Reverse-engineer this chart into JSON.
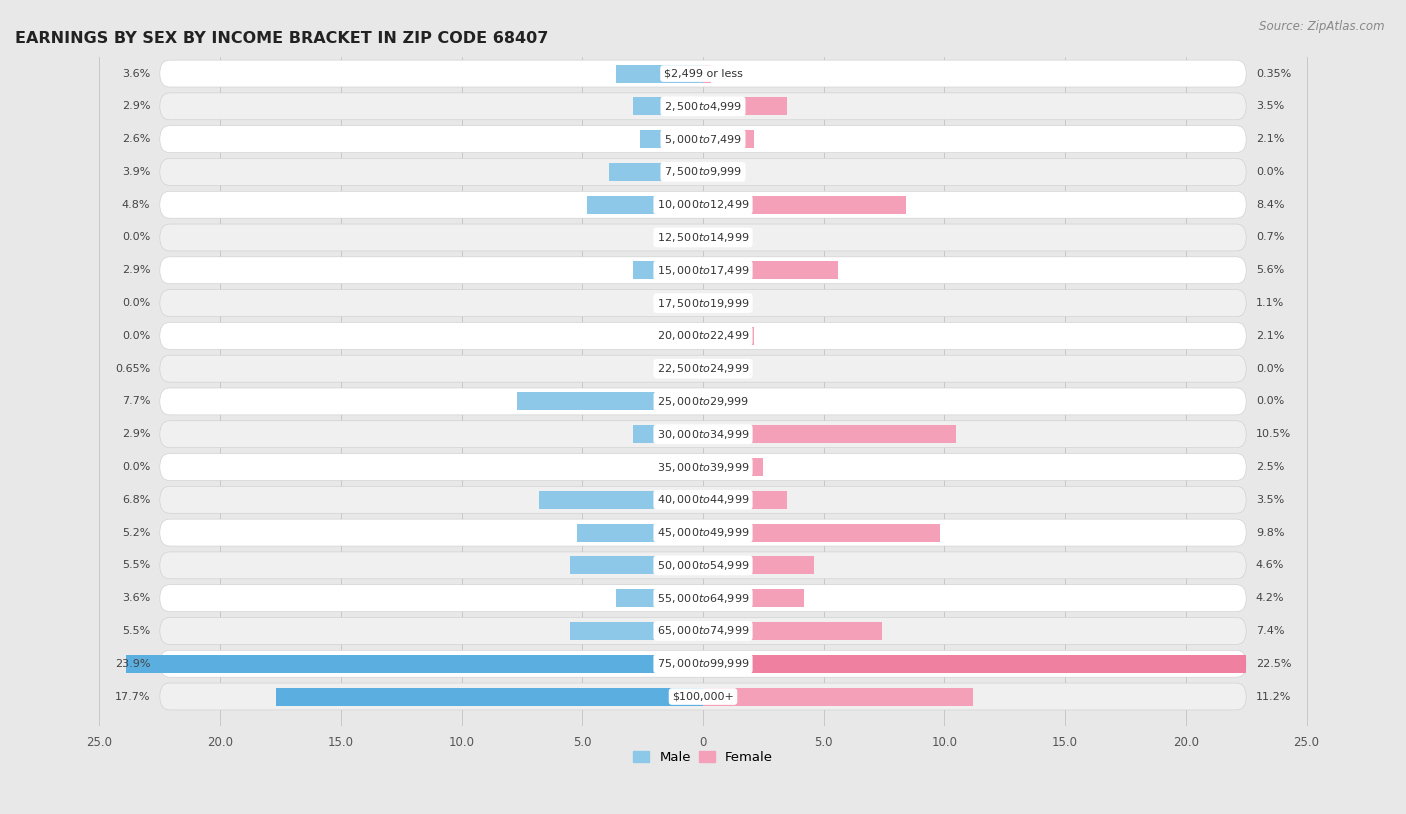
{
  "title": "EARNINGS BY SEX BY INCOME BRACKET IN ZIP CODE 68407",
  "source": "Source: ZipAtlas.com",
  "categories": [
    "$2,499 or less",
    "$2,500 to $4,999",
    "$5,000 to $7,499",
    "$7,500 to $9,999",
    "$10,000 to $12,499",
    "$12,500 to $14,999",
    "$15,000 to $17,499",
    "$17,500 to $19,999",
    "$20,000 to $22,499",
    "$22,500 to $24,999",
    "$25,000 to $29,999",
    "$30,000 to $34,999",
    "$35,000 to $39,999",
    "$40,000 to $44,999",
    "$45,000 to $49,999",
    "$50,000 to $54,999",
    "$55,000 to $64,999",
    "$65,000 to $74,999",
    "$75,000 to $99,999",
    "$100,000+"
  ],
  "male_values": [
    3.6,
    2.9,
    2.6,
    3.9,
    4.8,
    0.0,
    2.9,
    0.0,
    0.0,
    0.65,
    7.7,
    2.9,
    0.0,
    6.8,
    5.2,
    5.5,
    3.6,
    5.5,
    23.9,
    17.7
  ],
  "female_values": [
    0.35,
    3.5,
    2.1,
    0.0,
    8.4,
    0.7,
    5.6,
    1.1,
    2.1,
    0.0,
    0.0,
    10.5,
    2.5,
    3.5,
    9.8,
    4.6,
    4.2,
    7.4,
    22.5,
    11.2
  ],
  "male_color": "#8ec8e8",
  "female_color": "#f4a0b8",
  "male_color_strong": "#5aafe0",
  "female_color_strong": "#f080a0",
  "axis_max": 25.0,
  "page_bg": "#e8e8e8",
  "row_bg_light": "#ffffff",
  "row_bg_dark": "#f0f0f0",
  "title_fontsize": 11.5,
  "source_fontsize": 8.5,
  "label_fontsize": 8.0,
  "value_fontsize": 8.0,
  "tick_fontsize": 8.5,
  "tick_positions": [
    -25,
    -20,
    -15,
    -10,
    -5,
    0,
    5,
    10,
    15,
    20,
    25
  ],
  "tick_labels": [
    "25.0",
    "20.0",
    "15.0",
    "10.0",
    "5.0",
    "0",
    "5.0",
    "10.0",
    "15.0",
    "20.0",
    "25.0"
  ]
}
